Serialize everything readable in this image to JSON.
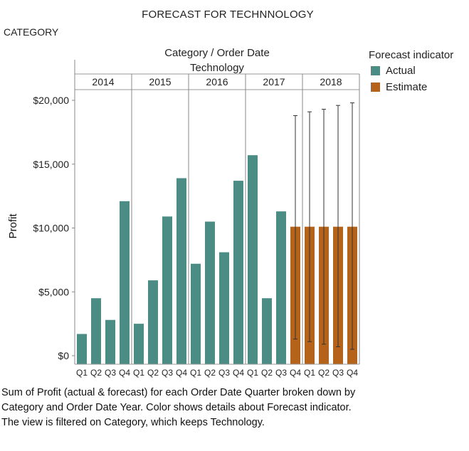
{
  "header": {
    "title": "FORECAST FOR TECHNNOLOGY",
    "filter_label": "CATEGORY"
  },
  "legend": {
    "title": "Forecast indicator",
    "items": [
      {
        "label": "Actual",
        "color": "#4b8c84"
      },
      {
        "label": "Estimate",
        "color": "#b5621a"
      }
    ]
  },
  "caption": "Sum of Profit (actual & forecast)  for each Order Date Quarter broken down by Category and Order Date Year.  Color shows details about Forecast indicator. The view is filtered on Category, which keeps Technology.",
  "chart_data": {
    "type": "bar",
    "title": "Category / Order Date",
    "subtitle": "Technology",
    "ylabel": "Profit",
    "ylim": [
      0,
      21000
    ],
    "yticks": [
      0,
      5000,
      10000,
      15000,
      20000
    ],
    "ytick_labels": [
      "$0",
      "$5,000",
      "$10,000",
      "$15,000",
      "$20,000"
    ],
    "years": [
      "2014",
      "2015",
      "2016",
      "2017",
      "2018"
    ],
    "quarters": [
      "Q1",
      "Q2",
      "Q3",
      "Q4"
    ],
    "bars": [
      {
        "year": "2014",
        "quarter": "Q1",
        "value": 1700,
        "indicator": "Actual"
      },
      {
        "year": "2014",
        "quarter": "Q2",
        "value": 4500,
        "indicator": "Actual"
      },
      {
        "year": "2014",
        "quarter": "Q3",
        "value": 2800,
        "indicator": "Actual"
      },
      {
        "year": "2014",
        "quarter": "Q4",
        "value": 12100,
        "indicator": "Actual"
      },
      {
        "year": "2015",
        "quarter": "Q1",
        "value": 2500,
        "indicator": "Actual"
      },
      {
        "year": "2015",
        "quarter": "Q2",
        "value": 5900,
        "indicator": "Actual"
      },
      {
        "year": "2015",
        "quarter": "Q3",
        "value": 10900,
        "indicator": "Actual"
      },
      {
        "year": "2015",
        "quarter": "Q4",
        "value": 13900,
        "indicator": "Actual"
      },
      {
        "year": "2016",
        "quarter": "Q1",
        "value": 7200,
        "indicator": "Actual"
      },
      {
        "year": "2016",
        "quarter": "Q2",
        "value": 10500,
        "indicator": "Actual"
      },
      {
        "year": "2016",
        "quarter": "Q3",
        "value": 8100,
        "indicator": "Actual"
      },
      {
        "year": "2016",
        "quarter": "Q4",
        "value": 13700,
        "indicator": "Actual"
      },
      {
        "year": "2017",
        "quarter": "Q1",
        "value": 15700,
        "indicator": "Actual"
      },
      {
        "year": "2017",
        "quarter": "Q2",
        "value": 4500,
        "indicator": "Actual"
      },
      {
        "year": "2017",
        "quarter": "Q3",
        "value": 11300,
        "indicator": "Actual"
      },
      {
        "year": "2017",
        "quarter": "Q4",
        "value": 10100,
        "indicator": "Estimate",
        "low": 1300,
        "high": 18800
      },
      {
        "year": "2018",
        "quarter": "Q1",
        "value": 10100,
        "indicator": "Estimate",
        "low": 1100,
        "high": 19100
      },
      {
        "year": "2018",
        "quarter": "Q2",
        "value": 10100,
        "indicator": "Estimate",
        "low": 900,
        "high": 19300
      },
      {
        "year": "2018",
        "quarter": "Q3",
        "value": 10100,
        "indicator": "Estimate",
        "low": 700,
        "high": 19600
      },
      {
        "year": "2018",
        "quarter": "Q4",
        "value": 10100,
        "indicator": "Estimate",
        "low": 500,
        "high": 19800
      }
    ],
    "grid": false,
    "legend_position": "right"
  }
}
